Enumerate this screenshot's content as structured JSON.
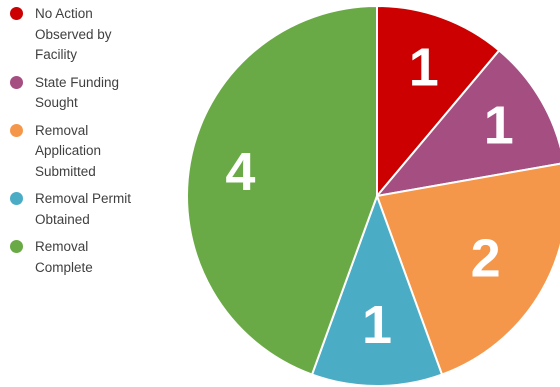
{
  "chart_data": {
    "type": "pie",
    "title": "",
    "legend_placement": "left",
    "categories": [
      "No Action Observed by Facility",
      "State Funding Sought",
      "Removal Application Submitted",
      "Removal Permit Obtained",
      "Removal Complete"
    ],
    "values": [
      1,
      1,
      2,
      1,
      4
    ],
    "colors": [
      "#cc0000",
      "#a44e82",
      "#f5974a",
      "#4bacc6",
      "#6aaa46"
    ],
    "legend_labels": [
      "No Action\nObserved by\nFacility",
      "State Funding\nSought",
      "Removal\nApplication\nSubmitted",
      "Removal Permit\nObtained",
      "Removal\nComplete"
    ],
    "data_labels": [
      "1",
      "1",
      "2",
      "1",
      "4"
    ]
  }
}
